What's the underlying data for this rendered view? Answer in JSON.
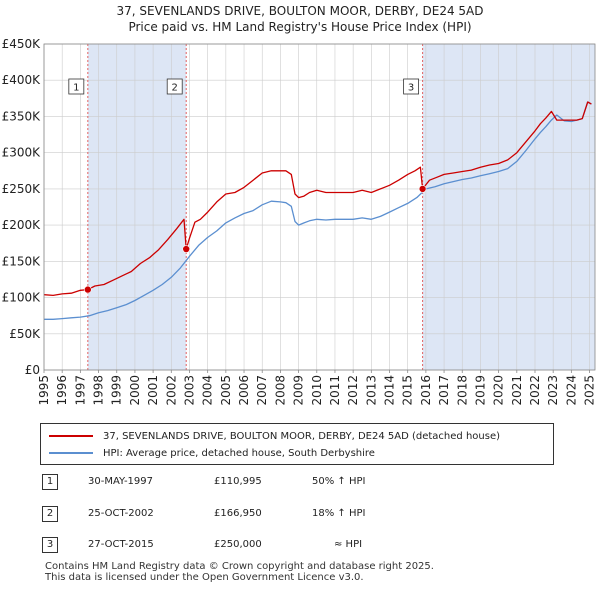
{
  "header": {
    "title": "37, SEVENLANDS DRIVE, BOULTON MOOR, DERBY, DE24 5AD",
    "subtitle": "Price paid vs. HM Land Registry's House Price Index (HPI)"
  },
  "colors": {
    "property": "#cc0000",
    "hpi": "#5b8fd0",
    "shade": "#dde6f5",
    "vline": "#e06060"
  },
  "chart_data": {
    "type": "line",
    "title": "37, SEVENLANDS DRIVE, BOULTON MOOR, DERBY, DE24 5AD",
    "subtitle": "Price paid vs. HM Land Registry's House Price Index (HPI)",
    "xlabel": "",
    "ylabel": "",
    "xlim": [
      1995,
      2025.3
    ],
    "ylim": [
      0,
      450000
    ],
    "x_ticks": [
      "1995",
      "1996",
      "1997",
      "1998",
      "1999",
      "2000",
      "2001",
      "2002",
      "2003",
      "2004",
      "2005",
      "2006",
      "2007",
      "2008",
      "2009",
      "2010",
      "2011",
      "2012",
      "2013",
      "2014",
      "2015",
      "2016",
      "2017",
      "2018",
      "2019",
      "2020",
      "2021",
      "2022",
      "2023",
      "2024",
      "2025"
    ],
    "y_ticks": [
      "£0",
      "£50K",
      "£100K",
      "£150K",
      "£200K",
      "£250K",
      "£300K",
      "£350K",
      "£400K",
      "£450K"
    ],
    "y_tick_values": [
      0,
      50000,
      100000,
      150000,
      200000,
      250000,
      300000,
      350000,
      400000,
      450000
    ],
    "grid": true,
    "shaded_ranges": [
      [
        1997.41,
        2002.82
      ],
      [
        2015.82,
        2025.3
      ]
    ],
    "series": [
      {
        "name": "37, SEVENLANDS DRIVE, BOULTON MOOR, DERBY, DE24 5AD (detached house)",
        "color": "#cc0000",
        "x": [
          1995.0,
          1995.5,
          1996.0,
          1996.5,
          1997.0,
          1997.41,
          1997.8,
          1998.3,
          1998.8,
          1999.3,
          1999.8,
          2000.3,
          2000.8,
          2001.3,
          2001.8,
          2002.3,
          2002.7,
          2002.82,
          2003.0,
          2003.3,
          2003.6,
          2004.0,
          2004.5,
          2005.0,
          2005.5,
          2006.0,
          2006.5,
          2007.0,
          2007.5,
          2008.0,
          2008.3,
          2008.6,
          2008.8,
          2009.0,
          2009.3,
          2009.6,
          2010.0,
          2010.5,
          2011.0,
          2011.5,
          2012.0,
          2012.5,
          2013.0,
          2013.5,
          2014.0,
          2014.5,
          2015.0,
          2015.4,
          2015.7,
          2015.82,
          2016.2,
          2016.6,
          2017.0,
          2017.5,
          2018.0,
          2018.5,
          2019.0,
          2019.5,
          2020.0,
          2020.5,
          2021.0,
          2021.5,
          2022.0,
          2022.3,
          2022.6,
          2022.9,
          2023.2,
          2023.6,
          2024.0,
          2024.3,
          2024.6,
          2024.9,
          2025.1
        ],
        "values": [
          104000,
          103000,
          105000,
          106000,
          110000,
          110995,
          116000,
          118000,
          124000,
          130000,
          136000,
          147000,
          155000,
          166000,
          180000,
          195000,
          208000,
          166950,
          182000,
          204000,
          208000,
          218000,
          232000,
          243000,
          245000,
          252000,
          262000,
          272000,
          275000,
          275000,
          275000,
          270000,
          243000,
          238000,
          240000,
          245000,
          248000,
          245000,
          245000,
          245000,
          245000,
          248000,
          245000,
          250000,
          255000,
          262000,
          270000,
          275000,
          280000,
          250000,
          262000,
          266000,
          270000,
          272000,
          274000,
          276000,
          280000,
          283000,
          285000,
          290000,
          300000,
          315000,
          330000,
          340000,
          348000,
          357000,
          345000,
          345000,
          345000,
          345000,
          347000,
          370000,
          367000
        ]
      },
      {
        "name": "HPI: Average price, detached house, South Derbyshire",
        "color": "#5b8fd0",
        "x": [
          1995.0,
          1995.5,
          1996.0,
          1996.5,
          1997.0,
          1997.5,
          1998.0,
          1998.5,
          1999.0,
          1999.5,
          2000.0,
          2000.5,
          2001.0,
          2001.5,
          2002.0,
          2002.5,
          2003.0,
          2003.5,
          2004.0,
          2004.5,
          2005.0,
          2005.5,
          2006.0,
          2006.5,
          2007.0,
          2007.5,
          2008.0,
          2008.3,
          2008.6,
          2008.8,
          2009.0,
          2009.3,
          2009.6,
          2010.0,
          2010.5,
          2011.0,
          2011.5,
          2012.0,
          2012.5,
          2013.0,
          2013.5,
          2014.0,
          2014.5,
          2015.0,
          2015.5,
          2016.0,
          2016.5,
          2017.0,
          2017.5,
          2018.0,
          2018.5,
          2019.0,
          2019.5,
          2020.0,
          2020.5,
          2021.0,
          2021.5,
          2022.0,
          2022.3,
          2022.6,
          2022.9,
          2023.2,
          2023.6,
          2024.0,
          2024.3,
          2024.6,
          2024.9,
          2025.1
        ],
        "values": [
          70000,
          70000,
          71000,
          72000,
          73000,
          75000,
          79000,
          82000,
          86000,
          90000,
          96000,
          103000,
          110000,
          118000,
          128000,
          141000,
          157000,
          172000,
          183000,
          192000,
          203000,
          210000,
          216000,
          220000,
          228000,
          233000,
          232000,
          231000,
          226000,
          205000,
          200000,
          203000,
          206000,
          208000,
          207000,
          208000,
          208000,
          208000,
          210000,
          208000,
          212000,
          218000,
          224000,
          230000,
          238000,
          250000,
          253000,
          257000,
          260000,
          263000,
          265000,
          268000,
          271000,
          274000,
          278000,
          288000,
          303000,
          319000,
          328000,
          336000,
          345000,
          352000,
          344000,
          343000,
          345000,
          347000,
          370000,
          367000
        ]
      }
    ],
    "sales": [
      {
        "label": "1",
        "x": 1997.41,
        "value": 110995
      },
      {
        "label": "2",
        "x": 2002.82,
        "value": 166950
      },
      {
        "label": "3",
        "x": 2015.82,
        "value": 250000
      }
    ]
  },
  "legend": {
    "property_label": "37, SEVENLANDS DRIVE, BOULTON MOOR, DERBY, DE24 5AD (detached house)",
    "hpi_label": "HPI: Average price, detached house, South Derbyshire"
  },
  "table": [
    {
      "index": "1",
      "date": "30-MAY-1997",
      "price": "£110,995",
      "hpi": "50% ↑ HPI"
    },
    {
      "index": "2",
      "date": "25-OCT-2002",
      "price": "£166,950",
      "hpi": "18% ↑ HPI"
    },
    {
      "index": "3",
      "date": "27-OCT-2015",
      "price": "£250,000",
      "hpi": "≈ HPI"
    }
  ],
  "footer": {
    "line1": "Contains HM Land Registry data © Crown copyright and database right 2025.",
    "line2": "This data is licensed under the Open Government Licence v3.0."
  }
}
